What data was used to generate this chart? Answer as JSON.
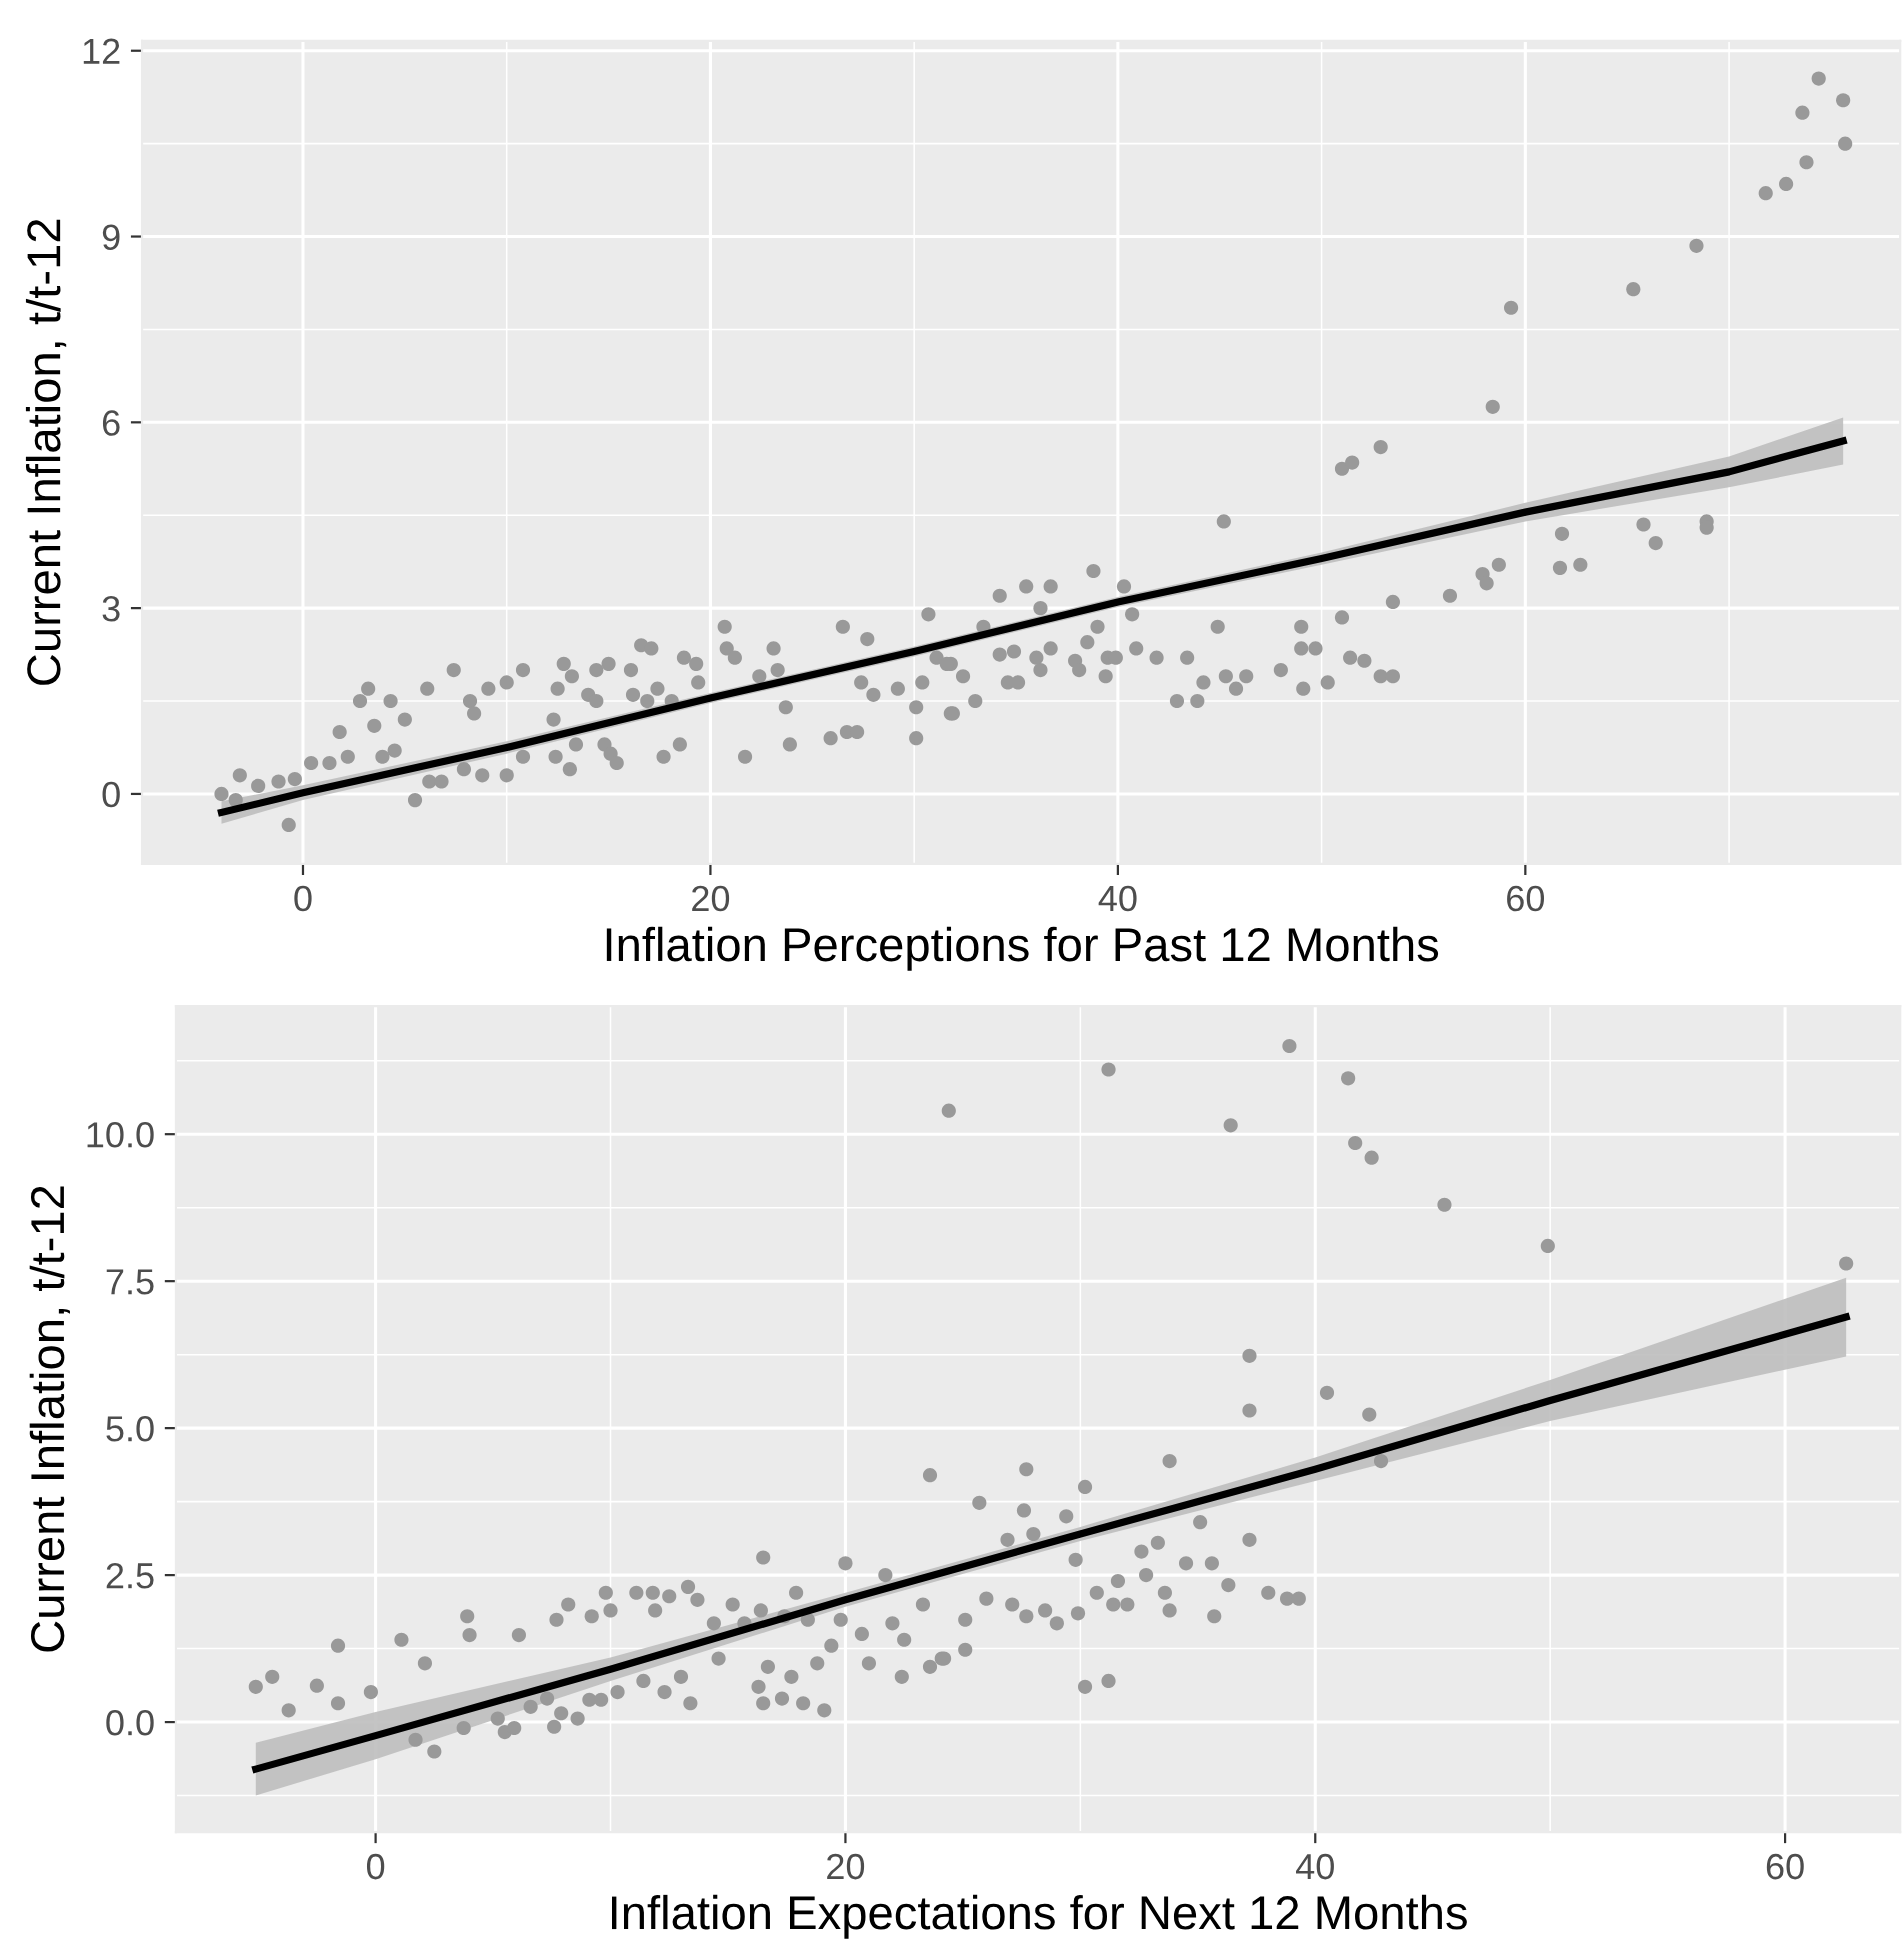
{
  "chart_data": [
    {
      "type": "scatter",
      "xlabel": "Inflation Perceptions for Past 12 Months",
      "ylabel": "Current Inflation, t/t-12",
      "xlim": [
        -7.9,
        78.4
      ],
      "ylim": [
        -1.13,
        12.16
      ],
      "xticks": [
        0,
        20,
        40,
        60
      ],
      "yticks": [
        0,
        3,
        6,
        9,
        12
      ],
      "grid": true,
      "series": [
        {
          "marker": "circle",
          "color": "#999999",
          "x": [
            -4.0,
            -3.1,
            -3.3,
            -2.2,
            -1.2,
            -0.7,
            -0.4,
            0.4,
            1.3,
            1.8,
            2.2,
            2.8,
            3.2,
            3.5,
            3.9,
            4.3,
            4.5,
            5.0,
            5.5,
            6.1,
            6.2,
            6.8,
            7.4,
            7.9,
            8.2,
            8.4,
            8.8,
            9.1,
            10.0,
            10.0,
            10.8,
            10.8,
            12.3,
            12.4,
            12.5,
            12.8,
            13.2,
            13.1,
            13.4,
            14.0,
            14.4,
            14.4,
            14.8,
            15.0,
            15.1,
            15.4,
            16.1,
            16.2,
            16.6,
            16.9,
            17.1,
            17.4,
            17.7,
            18.1,
            18.5,
            18.7,
            19.3,
            19.4,
            20.7,
            20.8,
            21.2,
            21.7,
            22.4,
            23.1,
            23.3,
            23.7,
            23.9,
            25.9,
            26.5,
            26.7,
            27.2,
            27.4,
            27.7,
            28.0,
            29.2,
            30.1,
            30.1,
            30.4,
            30.7,
            31.1,
            31.8,
            31.9,
            31.8,
            31.6,
            32.4,
            33.0,
            33.4,
            34.2,
            34.2,
            34.6,
            35.1,
            35.5,
            34.9,
            36.0,
            36.2,
            36.7,
            36.7,
            36.2,
            37.9,
            38.1,
            38.5,
            38.8,
            39.0,
            39.4,
            39.5,
            39.9,
            40.3,
            40.7,
            40.9,
            41.9,
            42.9,
            43.4,
            43.9,
            44.2,
            44.9,
            45.2,
            45.3,
            45.8,
            46.3,
            48.0,
            49.0,
            49.0,
            49.1,
            49.7,
            50.3,
            51.0,
            51.0,
            51.5,
            51.4,
            52.1,
            52.9,
            52.9,
            53.5,
            53.5,
            56.3,
            57.9,
            58.1,
            58.4,
            58.7,
            59.3,
            61.7,
            61.8,
            62.7,
            65.3,
            65.8,
            66.4,
            68.4,
            68.9,
            68.9,
            71.8,
            72.8,
            73.6,
            73.8,
            74.4,
            75.6,
            75.7
          ],
          "values": [
            0,
            0.3,
            -0.1,
            0.13,
            0.2,
            -0.5,
            0.24,
            0.5,
            0.5,
            1.0,
            0.6,
            1.5,
            1.7,
            1.1,
            0.6,
            1.5,
            0.7,
            1.2,
            -0.1,
            1.7,
            0.2,
            0.2,
            2.0,
            0.4,
            1.5,
            1.3,
            0.3,
            1.7,
            0.3,
            1.8,
            2.0,
            0.6,
            1.2,
            0.6,
            1.7,
            2.1,
            1.9,
            0.4,
            0.8,
            1.6,
            2.0,
            1.5,
            0.8,
            2.1,
            0.65,
            0.5,
            2.0,
            1.6,
            2.4,
            1.5,
            2.35,
            1.7,
            0.6,
            1.5,
            0.8,
            2.2,
            2.1,
            1.8,
            2.7,
            2.35,
            2.2,
            0.6,
            1.9,
            2.35,
            2.0,
            1.4,
            0.8,
            0.9,
            2.7,
            1.0,
            1.0,
            1.8,
            2.5,
            1.6,
            1.7,
            0.9,
            1.4,
            1.8,
            2.9,
            2.2,
            2.1,
            1.3,
            1.3,
            2.1,
            1.9,
            1.5,
            2.7,
            3.2,
            2.25,
            1.8,
            1.8,
            3.35,
            2.3,
            2.2,
            3.0,
            3.35,
            2.35,
            2.0,
            2.15,
            2.0,
            2.45,
            3.6,
            2.7,
            1.9,
            2.2,
            2.2,
            3.35,
            2.9,
            2.35,
            2.2,
            1.5,
            2.2,
            1.5,
            1.8,
            2.7,
            4.4,
            1.9,
            1.7,
            1.9,
            2.0,
            2.7,
            2.35,
            1.7,
            2.35,
            1.8,
            2.85,
            5.25,
            5.35,
            2.2,
            2.15,
            5.6,
            1.9,
            1.9,
            3.1,
            3.2,
            3.55,
            3.4,
            6.25,
            3.7,
            7.85,
            3.65,
            4.2,
            3.7,
            8.15,
            4.35,
            4.05,
            8.85,
            4.4,
            4.3,
            9.7,
            9.85,
            11.0,
            10.2,
            11.55,
            11.2,
            10.5
          ]
        },
        {
          "type": "line",
          "color": "#000000",
          "x": [
            -4.0,
            0,
            10,
            20,
            30,
            40,
            50,
            60,
            70,
            75.6
          ],
          "values": [
            -0.3,
            0.02,
            0.75,
            1.55,
            2.3,
            3.1,
            3.8,
            4.55,
            5.2,
            5.7
          ],
          "lower": [
            -0.48,
            -0.1,
            0.65,
            1.47,
            2.22,
            3.02,
            3.7,
            4.4,
            4.95,
            5.32
          ],
          "upper": [
            -0.12,
            0.14,
            0.85,
            1.63,
            2.38,
            3.18,
            3.9,
            4.7,
            5.45,
            6.08
          ]
        }
      ]
    },
    {
      "type": "scatter",
      "xlabel": "Inflation Expectations for Next 12 Months",
      "ylabel": "Current Inflation, t/t-12",
      "xlim": [
        -8.5,
        64.9
      ],
      "ylim": [
        -1.87,
        12.18
      ],
      "xticks": [
        0,
        20,
        40,
        60
      ],
      "yticks": [
        {
          "value": 0,
          "label": "0.0"
        },
        {
          "value": 2.5,
          "label": "2.5"
        },
        {
          "value": 5,
          "label": "5.0"
        },
        {
          "value": 7.5,
          "label": "7.5"
        },
        {
          "value": 10,
          "label": "10.0"
        }
      ],
      "grid": true,
      "series": [
        {
          "marker": "circle",
          "color": "#999999",
          "x": [
            -5.1,
            -4.4,
            -3.7,
            -2.5,
            -1.6,
            -1.6,
            -0.2,
            1.1,
            1.7,
            2.1,
            2.5,
            3.75,
            3.9,
            4.0,
            5.2,
            5.5,
            5.9,
            6.1,
            6.6,
            7.3,
            7.7,
            7.6,
            7.9,
            8.2,
            8.6,
            9.1,
            9.2,
            9.6,
            9.8,
            10.0,
            10.3,
            11.1,
            11.4,
            11.9,
            11.8,
            12.3,
            12.5,
            13.0,
            13.3,
            13.4,
            13.7,
            14.4,
            14.6,
            15.2,
            15.7,
            16.3,
            16.4,
            16.5,
            16.5,
            16.7,
            17.3,
            17.4,
            17.7,
            17.9,
            18.2,
            18.4,
            18.8,
            19.1,
            19.4,
            19.8,
            20.0,
            20.7,
            21.0,
            21.7,
            22.0,
            22.4,
            22.5,
            23.3,
            23.6,
            23.6,
            24.1,
            24.4,
            24.2,
            25.1,
            25.1,
            25.7,
            26.0,
            26.9,
            27.1,
            27.7,
            27.7,
            27.6,
            28.0,
            28.5,
            29.0,
            29.4,
            29.8,
            29.9,
            30.2,
            30.2,
            30.7,
            31.2,
            31.2,
            31.4,
            31.6,
            32.0,
            32.6,
            32.8,
            33.3,
            33.6,
            33.8,
            33.8,
            34.5,
            35.1,
            35.6,
            35.7,
            36.3,
            36.4,
            37.2,
            37.2,
            37.2,
            38.0,
            38.8,
            39.3,
            38.9,
            40.5,
            41.4,
            41.7,
            42.3,
            42.4,
            42.8,
            45.5,
            49.9,
            62.6
          ],
          "values": [
            0.6,
            0.77,
            0.2,
            0.62,
            1.3,
            0.32,
            0.51,
            1.4,
            -0.3,
            1.0,
            -0.5,
            -0.1,
            1.8,
            1.48,
            0.06,
            -0.17,
            -0.1,
            1.48,
            0.26,
            0.4,
            1.74,
            -0.08,
            0.15,
            2.0,
            0.06,
            0.38,
            1.8,
            0.38,
            2.2,
            1.9,
            0.51,
            2.2,
            0.7,
            1.9,
            2.2,
            0.51,
            2.14,
            0.77,
            2.3,
            0.32,
            2.08,
            1.68,
            1.08,
            2.0,
            1.68,
            0.6,
            1.9,
            2.8,
            0.32,
            0.94,
            0.4,
            1.8,
            0.77,
            2.2,
            0.32,
            1.74,
            1.0,
            0.2,
            1.3,
            1.74,
            2.7,
            1.5,
            1.0,
            2.5,
            1.68,
            0.77,
            1.4,
            2.0,
            0.94,
            4.2,
            1.08,
            10.4,
            1.08,
            1.23,
            1.74,
            3.73,
            2.1,
            3.1,
            2.0,
            1.8,
            4.3,
            3.6,
            3.2,
            1.9,
            1.68,
            3.5,
            2.76,
            1.85,
            0.6,
            4.0,
            2.2,
            11.1,
            0.7,
            2.0,
            2.4,
            2.0,
            2.9,
            2.5,
            3.05,
            2.2,
            1.9,
            4.44,
            2.7,
            3.4,
            2.7,
            1.8,
            2.33,
            10.15,
            6.23,
            5.3,
            3.1,
            2.2,
            2.1,
            2.1,
            11.5,
            5.6,
            10.95,
            9.85,
            5.23,
            9.6,
            4.44,
            8.8,
            8.1,
            7.8
          ]
        },
        {
          "type": "line",
          "color": "#000000",
          "x": [
            -5.1,
            0,
            10,
            20,
            30,
            40,
            50,
            62.6
          ],
          "values": [
            -0.8,
            -0.23,
            0.9,
            2.08,
            3.2,
            4.3,
            5.47,
            6.89
          ],
          "lower": [
            -1.25,
            -0.63,
            0.7,
            1.96,
            3.08,
            4.1,
            5.12,
            6.22
          ],
          "upper": [
            -0.35,
            0.17,
            1.1,
            2.2,
            3.32,
            4.5,
            5.82,
            7.56
          ]
        }
      ]
    }
  ]
}
